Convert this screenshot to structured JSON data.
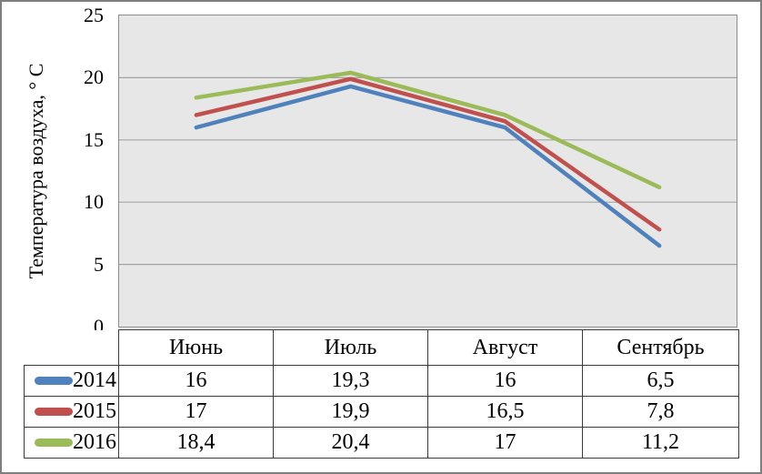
{
  "frame": {
    "border_color": "#7f7f7f"
  },
  "chart_data": {
    "type": "line",
    "title": "",
    "ylabel": "Температура воздуха, ° C",
    "xlabel": "",
    "ylim": [
      0,
      25
    ],
    "ytick_interval": 5,
    "yticks": [
      25,
      20,
      15,
      10,
      5,
      0
    ],
    "categories": [
      "Июнь",
      "Июль",
      "Август",
      "Сентябрь"
    ],
    "series": [
      {
        "name": "2014",
        "color": "#4F81BD",
        "values": [
          16,
          19.3,
          16,
          6.5
        ],
        "labels": [
          "16",
          "19,3",
          "16",
          "6,5"
        ]
      },
      {
        "name": "2015",
        "color": "#C0504D",
        "values": [
          17,
          19.9,
          16.5,
          7.8
        ],
        "labels": [
          "17",
          "19,9",
          "16,5",
          "7,8"
        ]
      },
      {
        "name": "2016",
        "color": "#9BBB59",
        "values": [
          18.4,
          20.4,
          17,
          11.2
        ],
        "labels": [
          "18,4",
          "20,4",
          "17",
          "11,2"
        ]
      }
    ],
    "legend_position": "table-left",
    "grid": true,
    "plot_bg": "#E7E7E7",
    "gridline_color": "#A3A3A3",
    "axis_color": "#8C8C8C",
    "line_width": 4.5
  }
}
